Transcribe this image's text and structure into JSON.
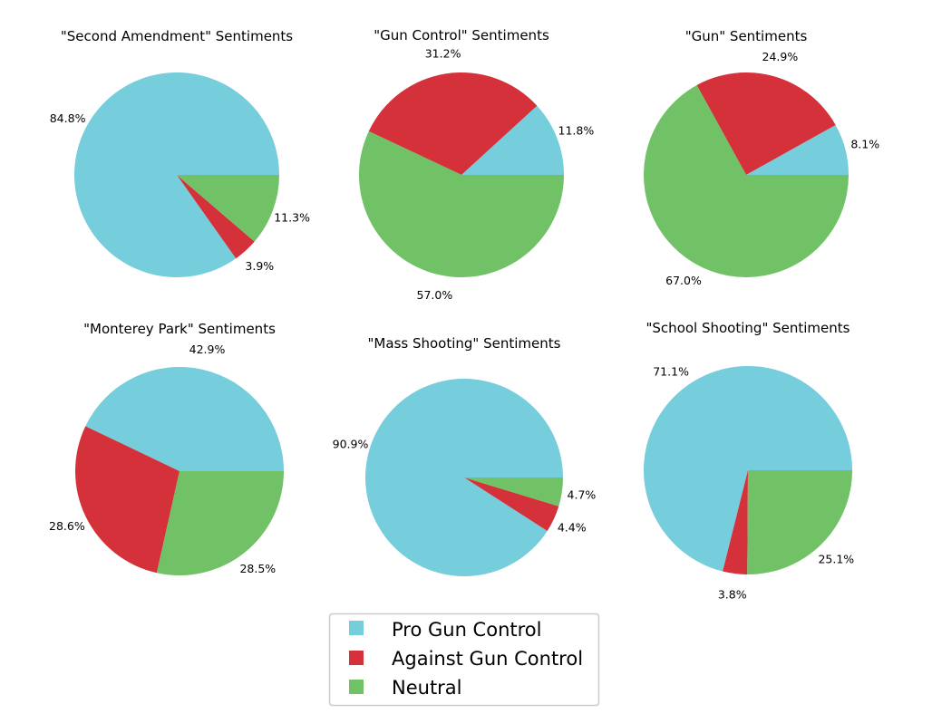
{
  "legend": {
    "items": [
      {
        "label": "Pro Gun Control",
        "color": "#76cddc"
      },
      {
        "label": "Against Gun Control",
        "color": "#d4313a"
      },
      {
        "label": "Neutral",
        "color": "#71c167"
      }
    ]
  },
  "chart_data": [
    {
      "type": "pie",
      "title": "\"Second Amendment\" Sentiments",
      "categories": [
        "Pro Gun Control",
        "Against Gun Control",
        "Neutral"
      ],
      "values": [
        84.8,
        3.9,
        11.3
      ],
      "labels": [
        "84.8%",
        "3.9%",
        "11.3%"
      ]
    },
    {
      "type": "pie",
      "title": "\"Gun Control\" Sentiments",
      "categories": [
        "Pro Gun Control",
        "Against Gun Control",
        "Neutral"
      ],
      "values": [
        11.8,
        31.2,
        57.0
      ],
      "labels": [
        "11.8%",
        "31.2%",
        "57.0%"
      ]
    },
    {
      "type": "pie",
      "title": "\"Gun\" Sentiments",
      "categories": [
        "Pro Gun Control",
        "Against Gun Control",
        "Neutral"
      ],
      "values": [
        8.1,
        24.9,
        67.0
      ],
      "labels": [
        "8.1%",
        "24.9%",
        "67.0%"
      ]
    },
    {
      "type": "pie",
      "title": "\"Monterey Park\" Sentiments",
      "categories": [
        "Pro Gun Control",
        "Against Gun Control",
        "Neutral"
      ],
      "values": [
        42.9,
        28.6,
        28.5
      ],
      "labels": [
        "42.9%",
        "28.6%",
        "28.5%"
      ]
    },
    {
      "type": "pie",
      "title": "\"Mass Shooting\" Sentiments",
      "categories": [
        "Pro Gun Control",
        "Against Gun Control",
        "Neutral"
      ],
      "values": [
        90.9,
        4.4,
        4.7
      ],
      "labels": [
        "90.9%",
        "4.4%",
        "4.7%"
      ]
    },
    {
      "type": "pie",
      "title": "\"School Shooting\" Sentiments",
      "categories": [
        "Pro Gun Control",
        "Against Gun Control",
        "Neutral"
      ],
      "values": [
        71.1,
        3.8,
        25.1
      ],
      "labels": [
        "71.1%",
        "3.8%",
        "25.1%"
      ]
    }
  ]
}
